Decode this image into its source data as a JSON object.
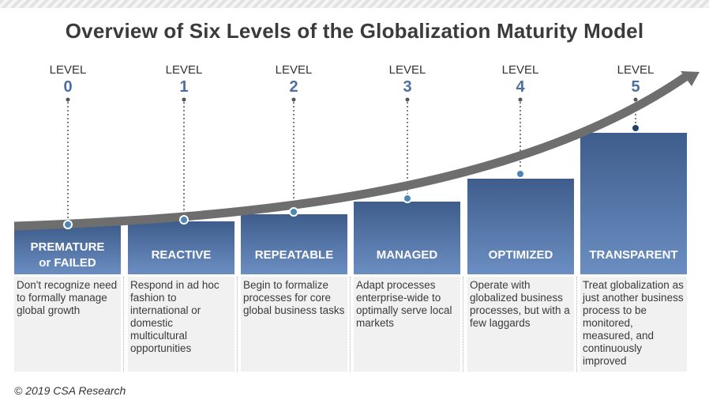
{
  "title": "Overview of Six Levels of the Globalization Maturity Model",
  "colors": {
    "band_dark": "#3e5d8c",
    "band_light": "#6b8ec2",
    "number": "#4b6ea3",
    "curve": "#6e6e6e",
    "desc_bg": "#f1f1f1"
  },
  "levels": [
    {
      "word": "LEVEL",
      "number": "0",
      "name": "PREMATURE or FAILED",
      "name_lines": [
        "PREMATURE",
        "or FAILED"
      ],
      "description": "Don't recognize need to formally manage global growth"
    },
    {
      "word": "LEVEL",
      "number": "1",
      "name": "REACTIVE",
      "name_lines": [
        "REACTIVE"
      ],
      "description": "Respond in ad hoc fashion to international or domestic multicultural opportunities"
    },
    {
      "word": "LEVEL",
      "number": "2",
      "name": "REPEATABLE",
      "name_lines": [
        "REPEATABLE"
      ],
      "description": "Begin to formalize processes for core global business tasks"
    },
    {
      "word": "LEVEL",
      "number": "3",
      "name": "MANAGED",
      "name_lines": [
        "MANAGED"
      ],
      "description": "Adapt processes enterprise-wide to optimally serve local markets"
    },
    {
      "word": "LEVEL",
      "number": "4",
      "name": "OPTIMIZED",
      "name_lines": [
        "OPTIMIZED"
      ],
      "description": "Operate with globalized business processes, but with a few laggards"
    },
    {
      "word": "LEVEL",
      "number": "5",
      "name": "TRANSPARENT",
      "name_lines": [
        "TRANSPARENT"
      ],
      "description": "Treat globalization as just another business process to be monitored, measured, and continuously improved"
    }
  ],
  "copyright": "© 2019 CSA Research"
}
